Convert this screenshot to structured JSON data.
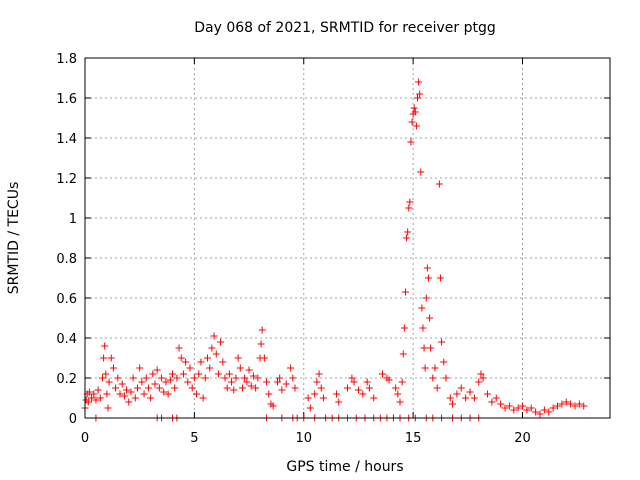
{
  "chart_data": {
    "type": "scatter",
    "title": "Day 068 of 2021, SRMTID for receiver ptgg",
    "xlabel": "GPS time / hours",
    "ylabel": "SRMTID / TECUs",
    "xlim": [
      0,
      24
    ],
    "ylim": [
      0,
      1.8
    ],
    "xticks": [
      0,
      5,
      10,
      15,
      20
    ],
    "yticks": [
      0,
      0.2,
      0.4,
      0.6,
      0.8,
      1,
      1.2,
      1.4,
      1.6,
      1.8
    ],
    "grid": true,
    "marker": "+",
    "color": "#ff0000",
    "series": [
      {
        "name": "SRMTID",
        "points": [
          [
            0.0,
            0.05
          ],
          [
            0.05,
            0.09
          ],
          [
            0.1,
            0.12
          ],
          [
            0.15,
            0.08
          ],
          [
            0.2,
            0.13
          ],
          [
            0.3,
            0.1
          ],
          [
            0.4,
            0.12
          ],
          [
            0.5,
            0.09
          ],
          [
            0.6,
            0.14
          ],
          [
            0.7,
            0.1
          ],
          [
            0.8,
            0.2
          ],
          [
            0.85,
            0.3
          ],
          [
            0.9,
            0.36
          ],
          [
            0.95,
            0.22
          ],
          [
            1.0,
            0.12
          ],
          [
            1.05,
            0.05
          ],
          [
            1.1,
            0.18
          ],
          [
            1.2,
            0.3
          ],
          [
            1.3,
            0.25
          ],
          [
            1.4,
            0.15
          ],
          [
            1.5,
            0.2
          ],
          [
            1.6,
            0.12
          ],
          [
            1.7,
            0.17
          ],
          [
            1.8,
            0.11
          ],
          [
            1.9,
            0.14
          ],
          [
            2.0,
            0.08
          ],
          [
            2.1,
            0.13
          ],
          [
            2.2,
            0.2
          ],
          [
            2.3,
            0.1
          ],
          [
            2.4,
            0.15
          ],
          [
            2.5,
            0.25
          ],
          [
            2.6,
            0.18
          ],
          [
            2.7,
            0.12
          ],
          [
            2.8,
            0.2
          ],
          [
            2.9,
            0.15
          ],
          [
            3.0,
            0.1
          ],
          [
            3.1,
            0.22
          ],
          [
            3.2,
            0.17
          ],
          [
            3.3,
            0.24
          ],
          [
            3.4,
            0.15
          ],
          [
            3.5,
            0.2
          ],
          [
            3.6,
            0.13
          ],
          [
            3.7,
            0.18
          ],
          [
            3.8,
            0.12
          ],
          [
            3.9,
            0.19
          ],
          [
            4.0,
            0.22
          ],
          [
            4.1,
            0.15
          ],
          [
            4.2,
            0.2
          ],
          [
            4.3,
            0.35
          ],
          [
            4.4,
            0.3
          ],
          [
            4.5,
            0.22
          ],
          [
            4.6,
            0.28
          ],
          [
            4.7,
            0.18
          ],
          [
            4.8,
            0.25
          ],
          [
            4.9,
            0.15
          ],
          [
            5.0,
            0.2
          ],
          [
            5.1,
            0.12
          ],
          [
            5.2,
            0.22
          ],
          [
            5.3,
            0.28
          ],
          [
            5.4,
            0.1
          ],
          [
            5.5,
            0.2
          ],
          [
            5.6,
            0.3
          ],
          [
            5.7,
            0.25
          ],
          [
            5.8,
            0.35
          ],
          [
            5.9,
            0.41
          ],
          [
            6.0,
            0.32
          ],
          [
            6.1,
            0.22
          ],
          [
            6.2,
            0.38
          ],
          [
            6.3,
            0.28
          ],
          [
            6.4,
            0.2
          ],
          [
            6.5,
            0.15
          ],
          [
            6.6,
            0.22
          ],
          [
            6.7,
            0.18
          ],
          [
            6.8,
            0.14
          ],
          [
            6.9,
            0.2
          ],
          [
            7.0,
            0.3
          ],
          [
            7.1,
            0.25
          ],
          [
            7.2,
            0.15
          ],
          [
            7.3,
            0.2
          ],
          [
            7.4,
            0.18
          ],
          [
            7.5,
            0.24
          ],
          [
            7.6,
            0.16
          ],
          [
            7.7,
            0.21
          ],
          [
            7.8,
            0.15
          ],
          [
            7.9,
            0.2
          ],
          [
            8.0,
            0.3
          ],
          [
            8.05,
            0.37
          ],
          [
            8.1,
            0.44
          ],
          [
            8.2,
            0.3
          ],
          [
            8.3,
            0.18
          ],
          [
            8.4,
            0.12
          ],
          [
            8.5,
            0.07
          ],
          [
            8.6,
            0.06
          ],
          [
            8.8,
            0.18
          ],
          [
            8.9,
            0.2
          ],
          [
            9.0,
            0.14
          ],
          [
            9.2,
            0.17
          ],
          [
            9.4,
            0.25
          ],
          [
            9.5,
            0.2
          ],
          [
            9.6,
            0.15
          ],
          [
            10.2,
            0.1
          ],
          [
            10.3,
            0.05
          ],
          [
            10.5,
            0.12
          ],
          [
            10.6,
            0.18
          ],
          [
            10.7,
            0.22
          ],
          [
            10.8,
            0.15
          ],
          [
            10.9,
            0.1
          ],
          [
            11.5,
            0.12
          ],
          [
            11.6,
            0.08
          ],
          [
            12.0,
            0.15
          ],
          [
            12.2,
            0.2
          ],
          [
            12.3,
            0.18
          ],
          [
            12.5,
            0.14
          ],
          [
            12.7,
            0.12
          ],
          [
            12.9,
            0.18
          ],
          [
            13.0,
            0.15
          ],
          [
            13.2,
            0.1
          ],
          [
            13.6,
            0.22
          ],
          [
            13.8,
            0.2
          ],
          [
            13.9,
            0.19
          ],
          [
            14.2,
            0.15
          ],
          [
            14.3,
            0.12
          ],
          [
            14.4,
            0.08
          ],
          [
            14.5,
            0.18
          ],
          [
            14.55,
            0.32
          ],
          [
            14.6,
            0.45
          ],
          [
            14.65,
            0.63
          ],
          [
            14.7,
            0.9
          ],
          [
            14.75,
            0.93
          ],
          [
            14.8,
            1.05
          ],
          [
            14.85,
            1.08
          ],
          [
            14.9,
            1.38
          ],
          [
            14.95,
            1.48
          ],
          [
            15.0,
            1.52
          ],
          [
            15.05,
            1.55
          ],
          [
            15.1,
            1.53
          ],
          [
            15.15,
            1.46
          ],
          [
            15.2,
            1.6
          ],
          [
            15.25,
            1.68
          ],
          [
            15.3,
            1.62
          ],
          [
            15.35,
            1.23
          ],
          [
            15.4,
            0.55
          ],
          [
            15.45,
            0.45
          ],
          [
            15.5,
            0.35
          ],
          [
            15.55,
            0.25
          ],
          [
            15.6,
            0.6
          ],
          [
            15.65,
            0.75
          ],
          [
            15.7,
            0.7
          ],
          [
            15.75,
            0.5
          ],
          [
            15.8,
            0.35
          ],
          [
            15.9,
            0.2
          ],
          [
            16.0,
            0.25
          ],
          [
            16.1,
            0.15
          ],
          [
            16.2,
            1.17
          ],
          [
            16.25,
            0.7
          ],
          [
            16.3,
            0.38
          ],
          [
            16.4,
            0.28
          ],
          [
            16.5,
            0.2
          ],
          [
            16.7,
            0.1
          ],
          [
            16.8,
            0.07
          ],
          [
            17.0,
            0.12
          ],
          [
            17.2,
            0.15
          ],
          [
            17.4,
            0.1
          ],
          [
            17.6,
            0.13
          ],
          [
            17.8,
            0.1
          ],
          [
            18.0,
            0.18
          ],
          [
            18.1,
            0.22
          ],
          [
            18.2,
            0.2
          ],
          [
            18.4,
            0.12
          ],
          [
            18.6,
            0.08
          ],
          [
            18.8,
            0.1
          ],
          [
            19.0,
            0.07
          ],
          [
            19.2,
            0.05
          ],
          [
            19.4,
            0.06
          ],
          [
            19.6,
            0.04
          ],
          [
            19.8,
            0.05
          ],
          [
            20.0,
            0.06
          ],
          [
            20.2,
            0.04
          ],
          [
            20.4,
            0.05
          ],
          [
            20.6,
            0.03
          ],
          [
            20.8,
            0.02
          ],
          [
            21.0,
            0.04
          ],
          [
            21.2,
            0.03
          ],
          [
            21.4,
            0.05
          ],
          [
            21.6,
            0.06
          ],
          [
            21.8,
            0.07
          ],
          [
            22.0,
            0.08
          ],
          [
            22.2,
            0.07
          ],
          [
            22.4,
            0.06
          ],
          [
            22.6,
            0.07
          ],
          [
            22.8,
            0.06
          ],
          [
            0.5,
            0.0
          ],
          [
            3.3,
            0.0
          ],
          [
            3.5,
            0.0
          ],
          [
            4.0,
            0.0
          ],
          [
            4.2,
            0.0
          ],
          [
            8.3,
            0.0
          ],
          [
            9.0,
            0.0
          ],
          [
            9.5,
            0.0
          ],
          [
            9.7,
            0.0
          ],
          [
            10.0,
            0.0
          ],
          [
            10.5,
            0.0
          ],
          [
            11.0,
            0.0
          ],
          [
            11.3,
            0.0
          ],
          [
            11.6,
            0.0
          ],
          [
            12.0,
            0.0
          ],
          [
            12.4,
            0.0
          ],
          [
            12.8,
            0.0
          ],
          [
            13.2,
            0.0
          ],
          [
            13.5,
            0.0
          ],
          [
            13.8,
            0.0
          ],
          [
            14.1,
            0.0
          ],
          [
            14.4,
            0.0
          ],
          [
            14.8,
            0.0
          ],
          [
            15.1,
            0.0
          ],
          [
            15.6,
            0.0
          ],
          [
            15.9,
            0.0
          ],
          [
            16.3,
            0.0
          ],
          [
            16.8,
            0.0
          ],
          [
            17.2,
            0.0
          ],
          [
            17.6,
            0.0
          ],
          [
            18.0,
            0.0
          ]
        ]
      }
    ]
  }
}
